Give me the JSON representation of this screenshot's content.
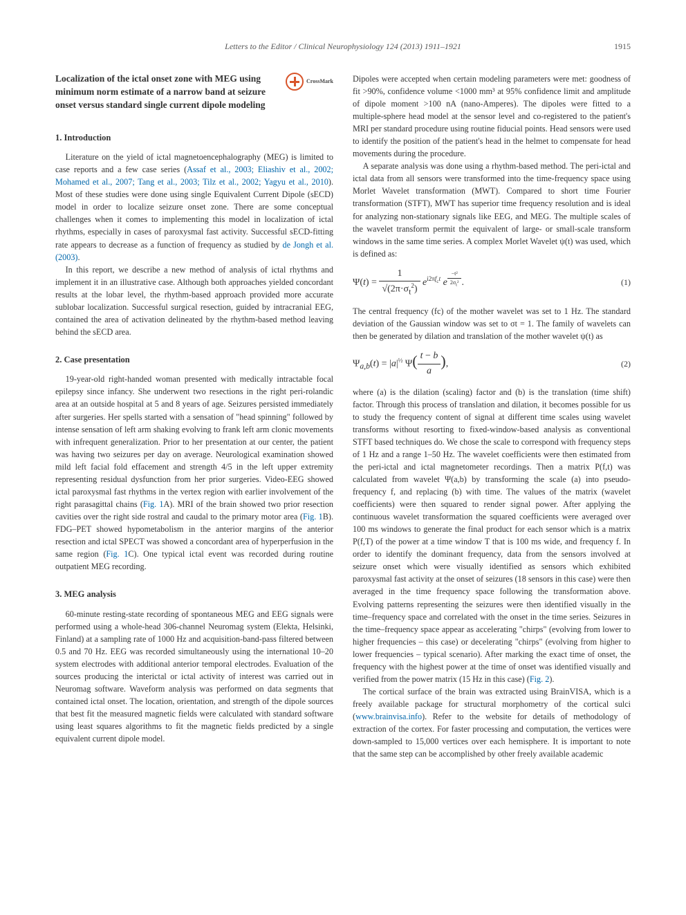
{
  "header": {
    "running": "Letters to the Editor / Clinical Neurophysiology 124 (2013) 1911–1921",
    "page": "1915"
  },
  "title": "Localization of the ictal onset zone with MEG using minimum norm estimate of a narrow band at seizure onset versus standard single current dipole modeling",
  "crossmark": "CrossMark",
  "sections": {
    "s1": {
      "head": "1. Introduction"
    },
    "s2": {
      "head": "2. Case presentation"
    },
    "s3": {
      "head": "3. MEG analysis"
    }
  },
  "eq1_num": "(1)",
  "eq2_num": "(2)",
  "left": {
    "p1a": "Literature on the yield of ictal magnetoencephalography (MEG) is limited to case reports and a few case series (",
    "p1cite": "Assaf et al., 2003; Eliashiv et al., 2002; Mohamed et al., 2007; Tang et al., 2003; Tilz et al., 2002; Yagyu et al., 2010",
    "p1b": "). Most of these studies were done using single Equivalent Current Dipole (sECD) model in order to localize seizure onset zone. There are some conceptual challenges when it comes to implementing this model in localization of ictal rhythms, especially in cases of paroxysmal fast activity. Successful sECD-fitting rate appears to decrease as a function of frequency as studied by ",
    "p1cite2": "de Jongh et al. (2003)",
    "p1c": ".",
    "p2": "In this report, we describe a new method of analysis of ictal rhythms and implement it in an illustrative case. Although both approaches yielded concordant results at the lobar level, the rhythm-based approach provided more accurate sublobar localization. Successful surgical resection, guided by intracranial EEG, contained the area of activation delineated by the rhythm-based method leaving behind the sECD area.",
    "p3a": "19-year-old right-handed woman presented with medically intractable focal epilepsy since infancy. She underwent two resections in the right peri-rolandic area at an outside hospital at 5 and 8 years of age. Seizures persisted immediately after surgeries. Her spells started with a sensation of \"head spinning\" followed by intense sensation of left arm shaking evolving to frank left arm clonic movements with infrequent generalization. Prior to her presentation at our center, the patient was having two seizures per day on average. Neurological examination showed mild left facial fold effacement and strength 4/5 in the left upper extremity representing residual dysfunction from her prior surgeries. Video-EEG showed ictal paroxysmal fast rhythms in the vertex region with earlier involvement of the right parasagittal chains (",
    "p3fig1": "Fig. 1",
    "p3b": "A). MRI of the brain showed two prior resection cavities over the right side rostral and caudal to the primary motor area (",
    "p3fig2": "Fig. 1",
    "p3c": "B). FDG–PET showed hypometabolism in the anterior margins of the anterior resection and ictal SPECT was showed a concordant area of hyperperfusion in the same region (",
    "p3fig3": "Fig. 1",
    "p3d": "C). One typical ictal event was recorded during routine outpatient MEG recording.",
    "p4": "60-minute resting-state recording of spontaneous MEG and EEG signals were performed using a whole-head 306-channel Neuromag system (Elekta, Helsinki, Finland) at a sampling rate of 1000 Hz and acquisition-band-pass filtered between 0.5 and 70 Hz. EEG was recorded simultaneously using the international 10–20 system electrodes with additional anterior temporal electrodes. Evaluation of the sources producing the interictal or ictal activity of interest was carried out in Neuromag software. Waveform analysis was performed on data segments that contained ictal onset. The location, orientation, and strength of the dipole sources that best fit the measured magnetic fields were calculated with standard software using least squares algorithms to fit the magnetic fields predicted by a single equivalent current dipole model."
  },
  "right": {
    "p1": "Dipoles were accepted when certain modeling parameters were met: goodness of fit >90%, confidence volume <1000 mm³ at 95% confidence limit and amplitude of dipole moment >100 nA (nano-Amperes). The dipoles were fitted to a multiple-sphere head model at the sensor level and co-registered to the patient's MRI per standard procedure using routine fiducial points. Head sensors were used to identify the position of the patient's head in the helmet to compensate for head movements during the procedure.",
    "p2": "A separate analysis was done using a rhythm-based method. The peri-ictal and ictal data from all sensors were transformed into the time-frequency space using Morlet Wavelet transformation (MWT). Compared to short time Fourier transformation (STFT), MWT has superior time frequency resolution and is ideal for analyzing non-stationary signals like EEG, and MEG. The multiple scales of the wavelet transform permit the equivalent of large- or small-scale transform windows in the same time series. A complex Morlet Wavelet ψ(t) was used, which is defined as:",
    "p3": "The central frequency (fc) of the mother wavelet was set to 1 Hz. The standard deviation of the Gaussian window was set to σt = 1. The family of wavelets can then be generated by dilation and translation of the mother wavelet ψ(t) as",
    "p4a": "where (a) is the dilation (scaling) factor and (b) is the translation (time shift) factor. Through this process of translation and dilation, it becomes possible for us to study the frequency content of signal at different time scales using wavelet transforms without resorting to fixed-window-based analysis as conventional STFT based techniques do. We chose the scale to correspond with frequency steps of 1 Hz and a range 1–50 Hz. The wavelet coefficients were then estimated from the peri-ictal and ictal magnetometer recordings. Then a matrix P(f,t) was calculated from wavelet Ψ(a,b) by transforming the scale (a) into pseudo-frequency f, and replacing (b) with time. The values of the matrix (wavelet coefficients) were then squared to render signal power. After applying the continuous wavelet transformation the squared coefficients were averaged over 100 ms windows to generate the final product for each sensor which is a matrix P(f,T) of the power at a time window T that is 100 ms wide, and frequency f. In order to identify the dominant frequency, data from the sensors involved at seizure onset which were visually identified as sensors which exhibited paroxysmal fast activity at the onset of seizures (18 sensors in this case) were then averaged in the time frequency space following the transformation above. Evolving patterns representing the seizures were then identified visually in the time–frequency space and correlated with the onset in the time series. Seizures in the time–frequency space appear as accelerating \"chirps\" (evolving from lower to higher frequencies – this case) or decelerating \"chirps\" (evolving from higher to lower frequencies – typical scenario). After marking the exact time of onset, the frequency with the highest power at the time of onset was identified visually and verified from the power matrix (15 Hz in this case) (",
    "p4fig": "Fig. 2",
    "p4b": ").",
    "p5a": "The cortical surface of the brain was extracted using BrainVISA, which is a freely available package for structural morphometry of the cortical sulci (",
    "p5link": "www.brainvisa.info",
    "p5b": "). Refer to the website for details of methodology of extraction of the cortex. For faster processing and computation, the vertices were down-sampled to 15,000 vertices over each hemisphere. It is important to note that the same step can be accomplished by other freely available academic"
  }
}
